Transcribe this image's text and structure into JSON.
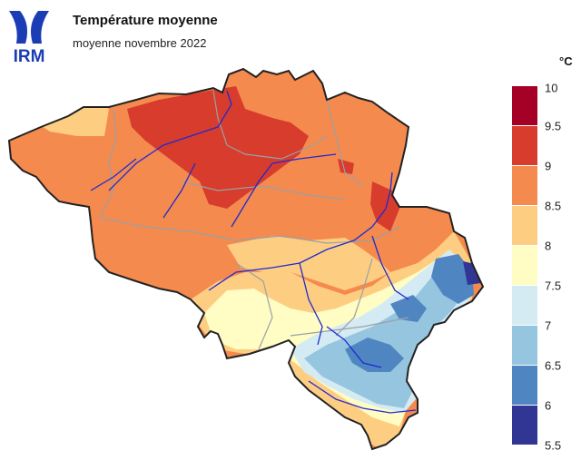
{
  "logo": {
    "text": "IRM",
    "color": "#1a3db5"
  },
  "header": {
    "title": "Température moyenne",
    "subtitle": "moyenne novembre 2022"
  },
  "legend": {
    "unit": "°C",
    "ticks": [
      "10",
      "9.5",
      "9",
      "8.5",
      "8",
      "7.5",
      "7",
      "6.5",
      "6",
      "5.5"
    ],
    "classes": [
      {
        "from": 9.5,
        "to": 10,
        "color": "#a50026"
      },
      {
        "from": 9,
        "to": 9.5,
        "color": "#d73c2c"
      },
      {
        "from": 8.5,
        "to": 9,
        "color": "#f58a4e"
      },
      {
        "from": 8,
        "to": 8.5,
        "color": "#fdce82"
      },
      {
        "from": 7.5,
        "to": 8,
        "color": "#fffcc4"
      },
      {
        "from": 7,
        "to": 7.5,
        "color": "#d5ebf4"
      },
      {
        "from": 6.5,
        "to": 7,
        "color": "#96c5e0"
      },
      {
        "from": 6,
        "to": 6.5,
        "color": "#4f86c2"
      },
      {
        "from": 5.5,
        "to": 6,
        "color": "#313695"
      }
    ]
  },
  "map": {
    "region": "Belgium",
    "rivers_color": "#1f2ad0",
    "borders_color": "#9aa0a6",
    "outline_color": "#222222"
  }
}
